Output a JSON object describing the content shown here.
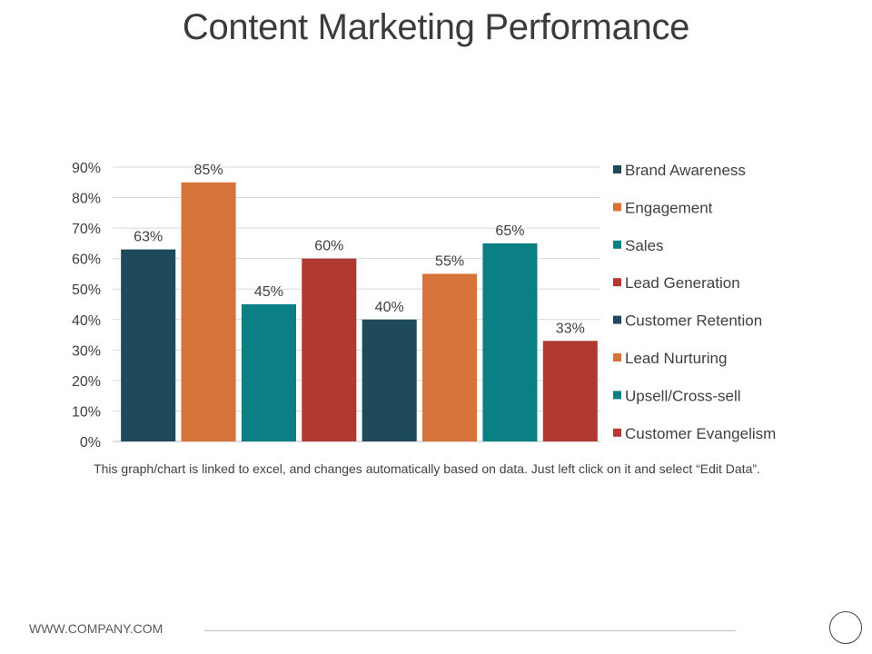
{
  "title": "Content Marketing Performance",
  "chart_data": {
    "type": "bar",
    "categories": [
      "Brand Awareness",
      "Engagement",
      "Sales",
      "Lead Generation",
      "Customer Retention",
      "Lead Nurturing",
      "Upsell/Cross-sell",
      "Customer Evangelism"
    ],
    "values": [
      63,
      85,
      45,
      60,
      40,
      55,
      65,
      33
    ],
    "data_labels": [
      "63%",
      "85%",
      "45%",
      "60%",
      "40%",
      "55%",
      "65%",
      "33%"
    ],
    "colors": [
      "#1f4a5c",
      "#d6733a",
      "#0a7f84",
      "#b03a31",
      "#1f4a5c",
      "#d6733a",
      "#0a7f84",
      "#b03a31"
    ],
    "ylim": [
      0,
      90
    ],
    "yticks": [
      0,
      10,
      20,
      30,
      40,
      50,
      60,
      70,
      80,
      90
    ],
    "ytick_labels": [
      "0%",
      "10%",
      "20%",
      "30%",
      "40%",
      "50%",
      "60%",
      "70%",
      "80%",
      "90%"
    ],
    "grid": true,
    "legend": "right"
  },
  "note": "This graph/chart is linked to excel, and changes automatically based on data. Just left click on it and select “Edit Data”.",
  "footer": {
    "url": "WWW.COMPANY.COM"
  }
}
